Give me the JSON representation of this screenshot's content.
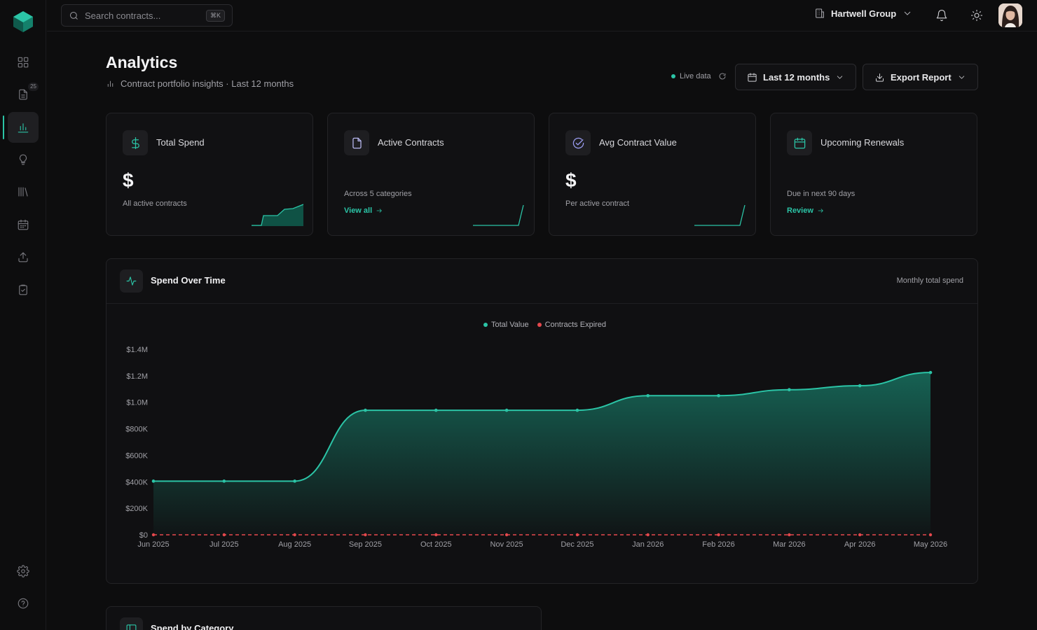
{
  "search": {
    "placeholder": "Search contracts...",
    "shortcut": "⌘K"
  },
  "sidebar": {
    "items": [
      {
        "name": "dashboard",
        "icon": "grid-icon"
      },
      {
        "name": "contracts",
        "icon": "document-icon",
        "badge": "25"
      },
      {
        "name": "analytics",
        "icon": "bar-chart-icon",
        "active": true
      },
      {
        "name": "insights",
        "icon": "lightbulb-icon"
      },
      {
        "name": "library",
        "icon": "library-icon"
      },
      {
        "name": "calendar",
        "icon": "calendar-icon"
      },
      {
        "name": "upload",
        "icon": "upload-icon"
      },
      {
        "name": "tasks",
        "icon": "clipboard-icon"
      },
      {
        "name": "settings",
        "icon": "gear-icon"
      },
      {
        "name": "help",
        "icon": "help-icon"
      }
    ]
  },
  "topbar": {
    "org_name": "Hartwell Group"
  },
  "header": {
    "title": "Analytics",
    "subtitle": "Contract portfolio insights · Last 12 months",
    "live_label": "Live data",
    "range_button": "Last 12 months",
    "export_button": "Export Report"
  },
  "kpis": [
    {
      "title": "Total Spend",
      "value": "$",
      "note": "All active contracts",
      "icon": "dollar-icon",
      "icon_color": "#2bc4a6"
    },
    {
      "title": "Active Contracts",
      "value": "",
      "note": "Across 5 categories",
      "link": "View all",
      "icon": "document-icon",
      "icon_color": "#b8b8f0"
    },
    {
      "title": "Avg Contract Value",
      "value": "$",
      "note": "Per active contract",
      "icon": "check-circle-icon",
      "icon_color": "#9a9cf0"
    },
    {
      "title": "Upcoming Renewals",
      "value": "",
      "note": "Due in next 90 days",
      "link": "Review",
      "icon": "calendar-icon",
      "icon_color": "#2bc4a6"
    }
  ],
  "spend_panel": {
    "title": "Spend Over Time",
    "subtitle": "Monthly total spend",
    "legend": [
      {
        "label": "Total Value",
        "color": "#2bc4a6"
      },
      {
        "label": "Contracts Expired",
        "color": "#e5484d"
      }
    ]
  },
  "chart_data": {
    "type": "area",
    "categories": [
      "Jun 2025",
      "Jul 2025",
      "Aug 2025",
      "Sep 2025",
      "Oct 2025",
      "Nov 2025",
      "Dec 2025",
      "Jan 2026",
      "Feb 2026",
      "Mar 2026",
      "Apr 2026",
      "May 2026"
    ],
    "series": [
      {
        "name": "Total Value",
        "values": [
          405000,
          405000,
          405000,
          940000,
          940000,
          940000,
          940000,
          1050000,
          1050000,
          1095000,
          1125000,
          1225000
        ],
        "color": "#2bc4a6"
      },
      {
        "name": "Contracts Expired",
        "values": [
          0,
          0,
          0,
          0,
          0,
          0,
          0,
          0,
          0,
          0,
          0,
          0
        ],
        "color": "#e5484d"
      }
    ],
    "yticks": [
      "$0",
      "$200K",
      "$400K",
      "$600K",
      "$800K",
      "$1.0M",
      "$1.2M",
      "$1.4M"
    ],
    "ylim": [
      0,
      1400000
    ],
    "grid": false,
    "legend": "top-center"
  },
  "category_panel": {
    "title": "Spend by Category"
  }
}
